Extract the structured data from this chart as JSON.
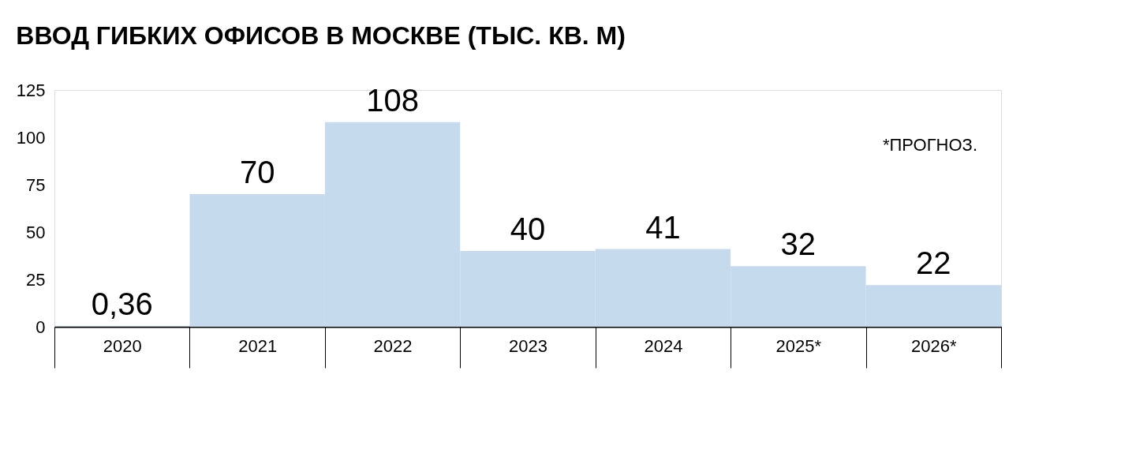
{
  "chart_data": {
    "type": "bar",
    "title": "ВВОД ГИБКИХ ОФИСОВ В МОСКВЕ (ТЫС. КВ. М)",
    "categories": [
      "2020",
      "2021",
      "2022",
      "2023",
      "2024",
      "2025*",
      "2026*"
    ],
    "values": [
      0.36,
      70,
      108,
      40,
      41,
      32,
      22
    ],
    "value_labels": [
      "0,36",
      "70",
      "108",
      "40",
      "41",
      "32",
      "22"
    ],
    "color": "#c5daec",
    "ylim": [
      0,
      125
    ],
    "yticks": [
      0,
      25,
      50,
      75,
      100,
      125
    ],
    "grid": false,
    "annotations": [
      "*ПРОГНОЗ."
    ]
  }
}
